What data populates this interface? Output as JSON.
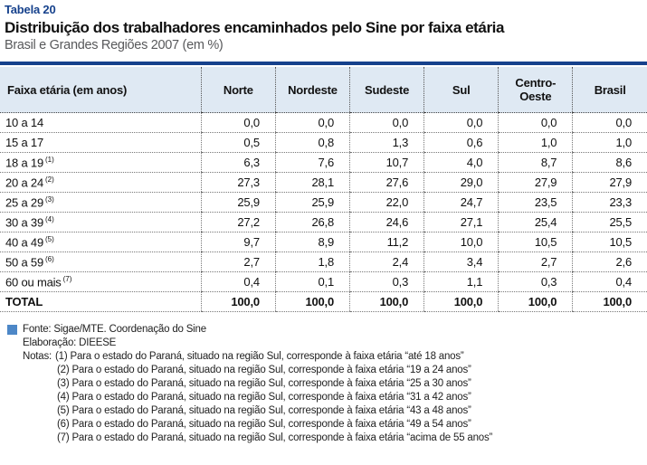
{
  "header": {
    "table_label": "Tabela 20",
    "title": "Distribuição dos trabalhadores encaminhados pelo Sine por faixa etária",
    "subtitle": "Brasil e Grandes Regiões 2007 (em %)"
  },
  "table": {
    "columns": [
      "Faixa etária (em anos)",
      "Norte",
      "Nordeste",
      "Sudeste",
      "Sul",
      "Centro-Oeste",
      "Brasil"
    ],
    "rows": [
      {
        "label": "10 a 14",
        "note": "",
        "values": [
          "0,0",
          "0,0",
          "0,0",
          "0,0",
          "0,0",
          "0,0"
        ]
      },
      {
        "label": "15 a 17",
        "note": "",
        "values": [
          "0,5",
          "0,8",
          "1,3",
          "0,6",
          "1,0",
          "1,0"
        ]
      },
      {
        "label": "18 a 19",
        "note": "(1)",
        "values": [
          "6,3",
          "7,6",
          "10,7",
          "4,0",
          "8,7",
          "8,6"
        ]
      },
      {
        "label": "20 a 24",
        "note": "(2)",
        "values": [
          "27,3",
          "28,1",
          "27,6",
          "29,0",
          "27,9",
          "27,9"
        ]
      },
      {
        "label": "25 a 29",
        "note": "(3)",
        "values": [
          "25,9",
          "25,9",
          "22,0",
          "24,7",
          "23,5",
          "23,3"
        ]
      },
      {
        "label": "30 a 39",
        "note": "(4)",
        "values": [
          "27,2",
          "26,8",
          "24,6",
          "27,1",
          "25,4",
          "25,5"
        ]
      },
      {
        "label": "40 a 49",
        "note": "(5)",
        "values": [
          "9,7",
          "8,9",
          "11,2",
          "10,0",
          "10,5",
          "10,5"
        ]
      },
      {
        "label": "50 a 59",
        "note": "(6)",
        "values": [
          "2,7",
          "1,8",
          "2,4",
          "3,4",
          "2,7",
          "2,6"
        ]
      },
      {
        "label": "60 ou mais",
        "note": "(7)",
        "values": [
          "0,4",
          "0,1",
          "0,3",
          "1,1",
          "0,3",
          "0,4"
        ]
      }
    ],
    "total_row": {
      "label": "TOTAL",
      "values": [
        "100,0",
        "100,0",
        "100,0",
        "100,0",
        "100,0",
        "100,0"
      ]
    }
  },
  "footer": {
    "fonte": "Fonte: Sigae/MTE. Coordenação do Sine",
    "elaboracao": "Elaboração: DIEESE",
    "notas_label": "Notas:",
    "notas": [
      "(1) Para o estado do Paraná, situado na região Sul, corresponde à faixa etária “até 18 anos”",
      "(2) Para o estado do Paraná, situado na região Sul, corresponde à faixa etária “19 a 24 anos”",
      "(3) Para o estado do Paraná, situado na região Sul, corresponde à faixa etária “25 a 30 anos”",
      "(4) Para o estado do Paraná, situado na região Sul, corresponde à faixa etária “31 a 42 anos”",
      "(5) Para o estado do Paraná, situado na região Sul, corresponde à faixa etária “43 a 48 anos”",
      "(6) Para o estado do Paraná, situado na região Sul, corresponde à faixa etária “49 a 54 anos”",
      "(7) Para o estado do Paraná, situado na região Sul, corresponde à faixa etária “acima de 55 anos”"
    ]
  },
  "colors": {
    "accent_blue": "#16418c",
    "header_bg": "#dfe9f3",
    "legend_square_blue": "#4d87c7",
    "subtitle_gray": "#58595b"
  }
}
